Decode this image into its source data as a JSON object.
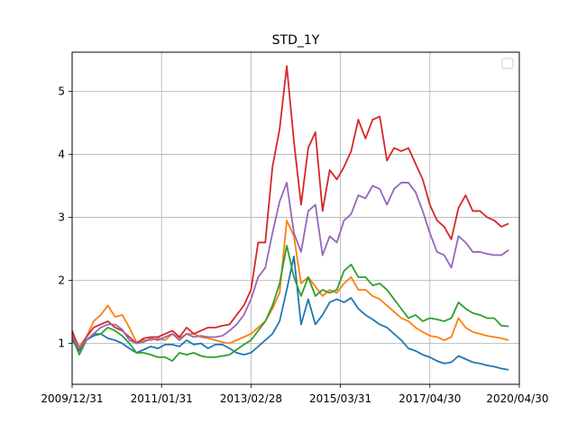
{
  "chart_data": {
    "type": "line",
    "title": "STD_1Y",
    "xlabel": "",
    "ylabel": "",
    "x_ticks": [
      "2009/12/31",
      "2011/01/31",
      "2013/02/28",
      "2015/03/31",
      "2017/04/30",
      "2020/04/30"
    ],
    "y_ticks": [
      1,
      2,
      3,
      4,
      5
    ],
    "xlim": [
      0,
      125
    ],
    "ylim": [
      0.35,
      5.62
    ],
    "x_tick_positions": [
      0,
      25,
      50,
      75,
      100,
      125
    ],
    "grid": true,
    "legend": "top-right, empty",
    "colors": [
      "#1f77b4",
      "#ff7f0e",
      "#2ca02c",
      "#d62728",
      "#9467bd"
    ],
    "x": [
      0,
      2,
      4,
      6,
      8,
      10,
      12,
      14,
      16,
      18,
      20,
      22,
      24,
      26,
      28,
      30,
      32,
      34,
      36,
      38,
      40,
      42,
      44,
      46,
      48,
      50,
      52,
      54,
      56,
      58,
      60,
      62,
      64,
      66,
      68,
      70,
      72,
      74,
      76,
      78,
      80,
      82,
      84,
      86,
      88,
      90,
      92,
      94,
      96,
      98,
      100,
      102,
      104,
      106,
      108,
      110,
      112,
      114,
      116,
      118,
      120,
      122
    ],
    "series": [
      {
        "values": [
          1.05,
          0.88,
          1.05,
          1.12,
          1.15,
          1.08,
          1.05,
          1.0,
          0.92,
          0.85,
          0.9,
          0.95,
          0.92,
          0.98,
          0.98,
          0.95,
          1.05,
          0.98,
          1.0,
          0.92,
          0.98,
          0.98,
          0.92,
          0.85,
          0.82,
          0.85,
          0.95,
          1.05,
          1.15,
          1.35,
          1.85,
          2.38,
          1.3,
          1.7,
          1.3,
          1.45,
          1.65,
          1.7,
          1.65,
          1.72,
          1.55,
          1.45,
          1.38,
          1.3,
          1.25,
          1.15,
          1.05,
          0.92,
          0.88,
          0.82,
          0.78,
          0.72,
          0.68,
          0.7,
          0.8,
          0.75,
          0.7,
          0.68,
          0.65,
          0.63,
          0.6,
          0.58
        ]
      },
      {
        "values": [
          1.15,
          0.95,
          1.1,
          1.35,
          1.45,
          1.6,
          1.42,
          1.45,
          1.25,
          1.02,
          1.05,
          1.05,
          1.08,
          1.05,
          1.15,
          1.08,
          1.15,
          1.15,
          1.1,
          1.08,
          1.05,
          1.02,
          1.0,
          1.05,
          1.1,
          1.15,
          1.25,
          1.35,
          1.55,
          1.8,
          2.95,
          2.7,
          1.95,
          2.05,
          1.9,
          1.75,
          1.85,
          1.8,
          1.95,
          2.05,
          1.85,
          1.85,
          1.75,
          1.7,
          1.6,
          1.5,
          1.4,
          1.35,
          1.25,
          1.18,
          1.12,
          1.1,
          1.05,
          1.1,
          1.4,
          1.25,
          1.18,
          1.15,
          1.12,
          1.1,
          1.08,
          1.05
        ]
      },
      {
        "values": [
          1.1,
          0.82,
          1.05,
          1.15,
          1.15,
          1.25,
          1.2,
          1.12,
          1.0,
          0.85,
          0.85,
          0.82,
          0.78,
          0.78,
          0.72,
          0.85,
          0.82,
          0.85,
          0.8,
          0.78,
          0.78,
          0.8,
          0.82,
          0.9,
          0.98,
          1.05,
          1.2,
          1.35,
          1.6,
          1.95,
          2.55,
          2.05,
          1.75,
          2.05,
          1.75,
          1.85,
          1.8,
          1.85,
          2.15,
          2.25,
          2.05,
          2.05,
          1.92,
          1.95,
          1.85,
          1.7,
          1.55,
          1.4,
          1.45,
          1.35,
          1.4,
          1.38,
          1.35,
          1.4,
          1.65,
          1.55,
          1.48,
          1.45,
          1.4,
          1.4,
          1.28,
          1.27
        ]
      },
      {
        "values": [
          1.2,
          0.9,
          1.1,
          1.25,
          1.3,
          1.35,
          1.25,
          1.2,
          1.1,
          1.0,
          1.08,
          1.1,
          1.1,
          1.15,
          1.2,
          1.1,
          1.25,
          1.15,
          1.2,
          1.25,
          1.25,
          1.28,
          1.3,
          1.45,
          1.6,
          1.85,
          2.6,
          2.6,
          3.8,
          4.4,
          5.4,
          4.2,
          3.2,
          4.1,
          4.35,
          3.1,
          3.75,
          3.6,
          3.8,
          4.05,
          4.55,
          4.25,
          4.55,
          4.6,
          3.9,
          4.1,
          4.05,
          4.1,
          3.85,
          3.6,
          3.2,
          2.95,
          2.85,
          2.65,
          3.15,
          3.35,
          3.1,
          3.1,
          3.0,
          2.95,
          2.85,
          2.9
        ]
      },
      {
        "values": [
          1.1,
          0.92,
          1.05,
          1.15,
          1.25,
          1.3,
          1.3,
          1.22,
          1.05,
          1.0,
          1.02,
          1.08,
          1.05,
          1.1,
          1.15,
          1.05,
          1.15,
          1.1,
          1.12,
          1.1,
          1.1,
          1.12,
          1.2,
          1.3,
          1.45,
          1.7,
          2.05,
          2.2,
          2.75,
          3.25,
          3.55,
          2.75,
          2.45,
          3.1,
          3.2,
          2.4,
          2.7,
          2.6,
          2.95,
          3.05,
          3.35,
          3.3,
          3.5,
          3.45,
          3.2,
          3.45,
          3.55,
          3.55,
          3.4,
          3.1,
          2.75,
          2.45,
          2.4,
          2.2,
          2.7,
          2.6,
          2.45,
          2.45,
          2.42,
          2.4,
          2.4,
          2.48
        ]
      }
    ]
  }
}
